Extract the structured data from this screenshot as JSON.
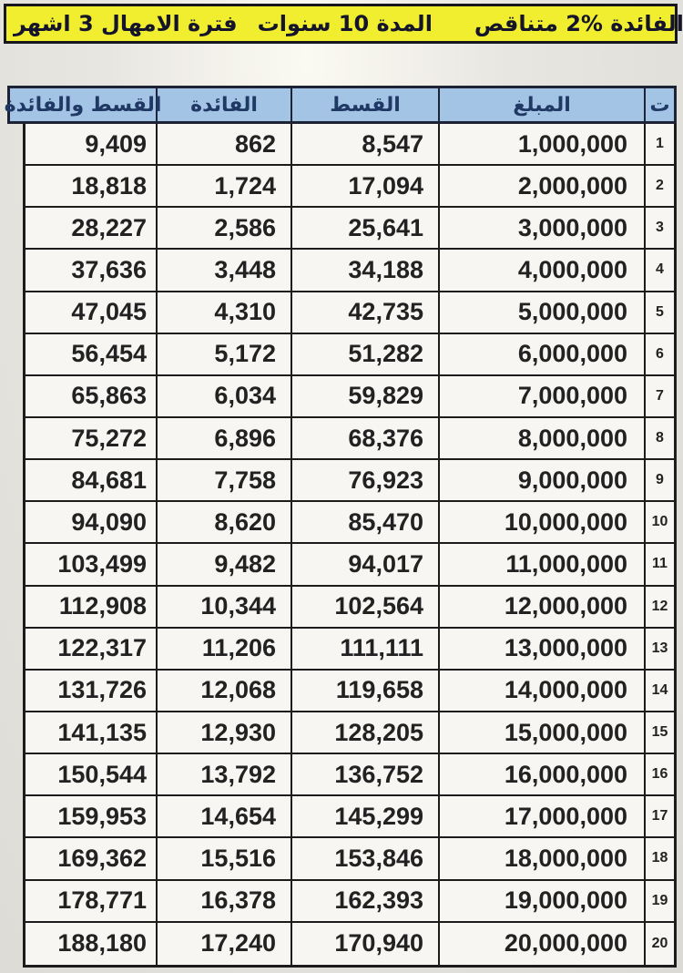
{
  "banner": {
    "segments": [
      "الفائدة %2 متناقص",
      "المدة 10 سنوات",
      "فترة الامهال 3 اشهر"
    ]
  },
  "table": {
    "columns": [
      {
        "key": "total",
        "label": "القسط والفائدة"
      },
      {
        "key": "interest",
        "label": "الفائدة"
      },
      {
        "key": "installment",
        "label": "القسط"
      },
      {
        "key": "amount",
        "label": "المبلغ"
      },
      {
        "key": "num",
        "label": "ت"
      }
    ],
    "rows": [
      {
        "num": "1",
        "amount": "1,000,000",
        "installment": "8,547",
        "interest": "862",
        "total": "9,409"
      },
      {
        "num": "2",
        "amount": "2,000,000",
        "installment": "17,094",
        "interest": "1,724",
        "total": "18,818"
      },
      {
        "num": "3",
        "amount": "3,000,000",
        "installment": "25,641",
        "interest": "2,586",
        "total": "28,227"
      },
      {
        "num": "4",
        "amount": "4,000,000",
        "installment": "34,188",
        "interest": "3,448",
        "total": "37,636"
      },
      {
        "num": "5",
        "amount": "5,000,000",
        "installment": "42,735",
        "interest": "4,310",
        "total": "47,045"
      },
      {
        "num": "6",
        "amount": "6,000,000",
        "installment": "51,282",
        "interest": "5,172",
        "total": "56,454"
      },
      {
        "num": "7",
        "amount": "7,000,000",
        "installment": "59,829",
        "interest": "6,034",
        "total": "65,863"
      },
      {
        "num": "8",
        "amount": "8,000,000",
        "installment": "68,376",
        "interest": "6,896",
        "total": "75,272"
      },
      {
        "num": "9",
        "amount": "9,000,000",
        "installment": "76,923",
        "interest": "7,758",
        "total": "84,681"
      },
      {
        "num": "10",
        "amount": "10,000,000",
        "installment": "85,470",
        "interest": "8,620",
        "total": "94,090"
      },
      {
        "num": "11",
        "amount": "11,000,000",
        "installment": "94,017",
        "interest": "9,482",
        "total": "103,499"
      },
      {
        "num": "12",
        "amount": "12,000,000",
        "installment": "102,564",
        "interest": "10,344",
        "total": "112,908"
      },
      {
        "num": "13",
        "amount": "13,000,000",
        "installment": "111,111",
        "interest": "11,206",
        "total": "122,317"
      },
      {
        "num": "14",
        "amount": "14,000,000",
        "installment": "119,658",
        "interest": "12,068",
        "total": "131,726"
      },
      {
        "num": "15",
        "amount": "15,000,000",
        "installment": "128,205",
        "interest": "12,930",
        "total": "141,135"
      },
      {
        "num": "16",
        "amount": "16,000,000",
        "installment": "136,752",
        "interest": "13,792",
        "total": "150,544"
      },
      {
        "num": "17",
        "amount": "17,000,000",
        "installment": "145,299",
        "interest": "14,654",
        "total": "159,953"
      },
      {
        "num": "18",
        "amount": "18,000,000",
        "installment": "153,846",
        "interest": "15,516",
        "total": "169,362"
      },
      {
        "num": "19",
        "amount": "19,000,000",
        "installment": "162,393",
        "interest": "16,378",
        "total": "178,771"
      },
      {
        "num": "20",
        "amount": "20,000,000",
        "installment": "170,940",
        "interest": "17,240",
        "total": "188,180"
      }
    ]
  },
  "colors": {
    "banner_bg": "#f1ee2f",
    "banner_text": "#14142a",
    "header_bg": "#a4c4e6",
    "header_text": "#1f3864",
    "cell_bg": "#f7f6f2",
    "border": "#1c1c1c",
    "page_bg": "#e8e6e0"
  }
}
